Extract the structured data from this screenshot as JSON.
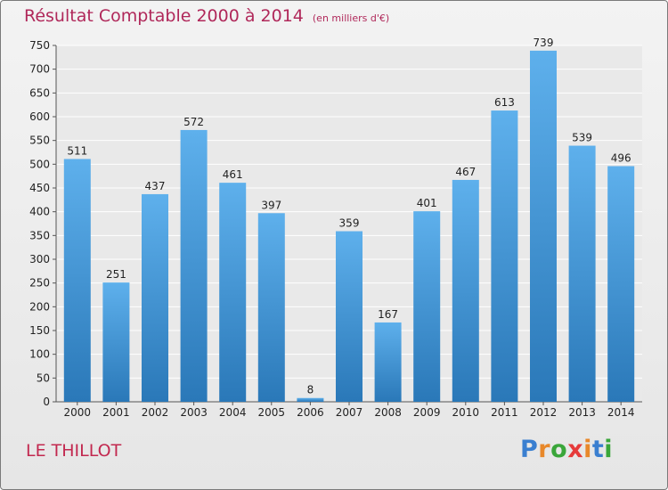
{
  "header": {
    "title": "Résultat Comptable 2000 à 2014",
    "subtitle": "(en milliers d'€)"
  },
  "footer": {
    "location": "LE THILLOT",
    "logo": {
      "text": "Proxiti",
      "letter_colors": [
        "#3a7fd0",
        "#e8882a",
        "#3aa63a",
        "#e63a3a",
        "#e8882a",
        "#3a7fd0",
        "#3aa63a"
      ]
    }
  },
  "colors": {
    "bar_top": "#5eb0ec",
    "bar_bottom": "#2a78b8",
    "plot_background": "#e9e9e9",
    "grid": "#ffffff",
    "text": "#222222",
    "title": "#b0285a"
  },
  "chart_data": {
    "type": "bar",
    "title": "Résultat Comptable 2000 à 2014",
    "subtitle": "(en milliers d'€)",
    "categories": [
      "2000",
      "2001",
      "2002",
      "2003",
      "2004",
      "2005",
      "2006",
      "2007",
      "2008",
      "2009",
      "2010",
      "2011",
      "2012",
      "2013",
      "2014"
    ],
    "values": [
      511,
      251,
      437,
      572,
      461,
      397,
      8,
      359,
      167,
      401,
      467,
      613,
      739,
      539,
      496
    ],
    "ylim": [
      0,
      750
    ],
    "yticks": [
      0,
      50,
      100,
      150,
      200,
      250,
      300,
      350,
      400,
      450,
      500,
      550,
      600,
      650,
      700,
      750
    ],
    "grid": true,
    "data_labels": true,
    "xlabel": "",
    "ylabel": ""
  }
}
